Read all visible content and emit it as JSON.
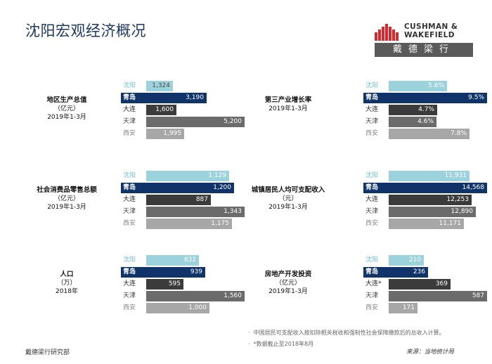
{
  "page": {
    "title": "沈阳宏观经济概况",
    "footer_left": "戴德梁行研究部",
    "footer_source": "来源：当地统计局",
    "notes": [
      "中国居民可支配收入按扣除相关税收和强制性社会保障缴款后的总收入计算。",
      "*数据截止至2018年8月"
    ]
  },
  "logo": {
    "en_line1": "CUSHMAN &",
    "en_line2": "WAKEFIELD",
    "cn": "戴德梁行"
  },
  "colors": {
    "沈阳": {
      "bar": "#9bd2dc",
      "label_bg": "#ffffff",
      "label_text": "#6fc0cf",
      "value_text": "#ffffff"
    },
    "青岛": {
      "bar": "#10346a",
      "label_bg": "#10346a",
      "label_text": "#ffffff",
      "value_text": "#ffffff"
    },
    "大连": {
      "bar": "#3b3b3b",
      "label_bg": "#ffffff",
      "label_text": "#222222",
      "value_text": "#ffffff"
    },
    "天津": {
      "bar": "#6b6b6b",
      "label_bg": "#ffffff",
      "label_text": "#444444",
      "value_text": "#ffffff"
    },
    "西安": {
      "bar": "#a7a7a7",
      "label_bg": "#ffffff",
      "label_text": "#888888",
      "value_text": "#ffffff"
    }
  },
  "chart_data": [
    {
      "type": "bar",
      "orientation": "horizontal",
      "title": "地区生产总值",
      "unit": "（亿元）",
      "period": "2019年1-3月",
      "categories": [
        "沈阳",
        "青岛",
        "大连",
        "天津",
        "西安"
      ],
      "values": [
        1324,
        3190,
        1600,
        5200,
        1995
      ],
      "labels": [
        "1,324",
        "3,190",
        "1,600",
        "5,200",
        "1,995"
      ],
      "xlim": [
        0,
        5200
      ]
    },
    {
      "type": "bar",
      "orientation": "horizontal",
      "title": "第三产业增长率",
      "unit": "",
      "period": "2019年1-3月",
      "categories": [
        "沈阳",
        "青岛",
        "大连",
        "天津",
        "西安"
      ],
      "values": [
        5.6,
        9.5,
        4.7,
        4.6,
        7.8
      ],
      "labels": [
        "5.6%",
        "9.5%",
        "4.7%",
        "4.6%",
        "7.8%"
      ],
      "xlim": [
        0,
        9.5
      ]
    },
    {
      "type": "bar",
      "orientation": "horizontal",
      "title": "社会消费品零售总额",
      "unit": "（亿元）",
      "period": "2019年1-3月",
      "categories": [
        "沈阳",
        "青岛",
        "大连",
        "天津",
        "西安"
      ],
      "values": [
        1129,
        1200,
        887,
        1343,
        1175
      ],
      "labels": [
        "1,129",
        "1,200",
        "887",
        "1,343",
        "1,175"
      ],
      "xlim": [
        0,
        1343
      ]
    },
    {
      "type": "bar",
      "orientation": "horizontal",
      "title": "城镇居民人均可支配收入",
      "unit": "（元）",
      "period": "2019年1-3月",
      "categories": [
        "沈阳",
        "青岛",
        "大连",
        "天津",
        "西安"
      ],
      "values": [
        11931,
        14568,
        12253,
        12890,
        11171
      ],
      "labels": [
        "11,931",
        "14,568",
        "12,253",
        "12,890",
        "11,171"
      ],
      "xlim": [
        0,
        14568
      ]
    },
    {
      "type": "bar",
      "orientation": "horizontal",
      "title": "人口",
      "unit": "（万）",
      "period": "2018年",
      "categories": [
        "沈阳",
        "青岛",
        "大连",
        "天津",
        "西安"
      ],
      "values": [
        832,
        939,
        595,
        1560,
        1000
      ],
      "labels": [
        "832",
        "939",
        "595",
        "1,560",
        "1,000"
      ],
      "xlim": [
        0,
        1560
      ]
    },
    {
      "type": "bar",
      "orientation": "horizontal",
      "title": "房地产开发投资",
      "unit": "（亿元）",
      "period": "2019年1-3月",
      "categories": [
        "沈阳",
        "青岛",
        "大连*",
        "天津",
        "西安"
      ],
      "values": [
        210,
        236,
        369,
        587,
        171
      ],
      "labels": [
        "210",
        "236",
        "369",
        "587",
        "171"
      ],
      "xlim": [
        0,
        587
      ]
    }
  ]
}
